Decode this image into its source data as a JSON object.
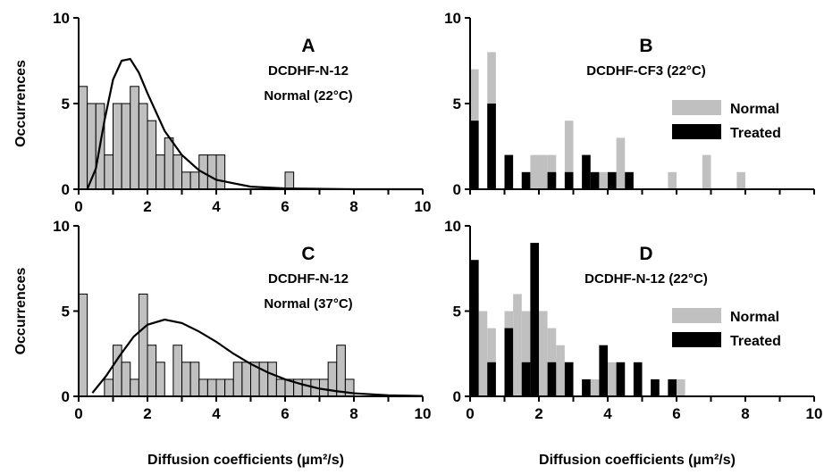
{
  "x_axis_label": "Diffusion coefficients (µm²/s)",
  "chart_data": [
    {
      "type": "histogram",
      "letter": "A",
      "subtitle_lines": [
        "DCDHF-N-12",
        "Normal (22°C)"
      ],
      "ylabel": "Occurrences",
      "xlim": [
        0,
        10
      ],
      "ylim": [
        0,
        10
      ],
      "xticks": [
        0,
        2,
        4,
        6,
        8,
        10
      ],
      "yticks": [
        0,
        5,
        10
      ],
      "bin_width": 0.25,
      "series": [
        {
          "color": "#c0c0c0",
          "bars": [
            [
              0,
              6
            ],
            [
              0.25,
              5
            ],
            [
              0.5,
              5
            ],
            [
              0.75,
              2
            ],
            [
              1.0,
              5
            ],
            [
              1.25,
              5
            ],
            [
              1.5,
              6
            ],
            [
              1.75,
              5
            ],
            [
              2.0,
              4
            ],
            [
              2.25,
              2
            ],
            [
              2.5,
              3
            ],
            [
              2.75,
              2
            ],
            [
              3.0,
              1
            ],
            [
              3.25,
              1
            ],
            [
              3.5,
              2
            ],
            [
              3.75,
              2
            ],
            [
              4.0,
              2
            ],
            [
              6.0,
              1
            ]
          ]
        }
      ],
      "fit_curve": {
        "x": [
          0.25,
          0.5,
          0.75,
          1.0,
          1.25,
          1.5,
          1.75,
          2.0,
          2.5,
          3.0,
          3.5,
          4.0,
          5.0,
          6.0,
          8.0,
          10.0
        ],
        "y": [
          0,
          1.2,
          4,
          6.4,
          7.5,
          7.6,
          6.8,
          5.6,
          3.4,
          2.0,
          1.1,
          0.55,
          0.15,
          0.05,
          0,
          0
        ]
      }
    },
    {
      "type": "histogram",
      "letter": "B",
      "subtitle_lines": [
        "DCDHF-CF3 (22°C)"
      ],
      "ylabel": "",
      "xlim": [
        0,
        10
      ],
      "ylim": [
        0,
        10
      ],
      "xticks": [],
      "yticks": [
        0,
        5,
        10
      ],
      "bin_width": 0.25,
      "series": [
        {
          "name": "Normal",
          "color": "#c0c0c0",
          "bars": [
            [
              0,
              7
            ],
            [
              0.5,
              8
            ],
            [
              1.75,
              2
            ],
            [
              2.0,
              2
            ],
            [
              2.25,
              2
            ],
            [
              2.75,
              4
            ],
            [
              3.25,
              1
            ],
            [
              3.75,
              1
            ],
            [
              4.25,
              3
            ],
            [
              5.75,
              1
            ],
            [
              6.75,
              2
            ],
            [
              7.75,
              1
            ]
          ]
        },
        {
          "name": "Treated",
          "color": "#000000",
          "bars": [
            [
              0,
              4
            ],
            [
              0.5,
              5
            ],
            [
              1.0,
              2
            ],
            [
              1.5,
              1
            ],
            [
              2.25,
              1
            ],
            [
              2.75,
              1
            ],
            [
              3.25,
              2
            ],
            [
              3.5,
              1
            ],
            [
              4.0,
              1
            ],
            [
              4.5,
              1
            ]
          ]
        }
      ],
      "legend": [
        "Normal",
        "Treated"
      ]
    },
    {
      "type": "histogram",
      "letter": "C",
      "subtitle_lines": [
        "DCDHF-N-12",
        "Normal (37°C)"
      ],
      "ylabel": "Occurrences",
      "xlim": [
        0,
        10
      ],
      "ylim": [
        0,
        10
      ],
      "xticks": [
        0,
        2,
        4,
        6,
        8,
        10
      ],
      "yticks": [
        0,
        5,
        10
      ],
      "bin_width": 0.25,
      "series": [
        {
          "color": "#c0c0c0",
          "bars": [
            [
              0,
              6
            ],
            [
              0.25,
              0
            ],
            [
              0.5,
              0
            ],
            [
              0.75,
              1
            ],
            [
              1.0,
              3
            ],
            [
              1.25,
              2
            ],
            [
              1.5,
              1
            ],
            [
              1.75,
              6
            ],
            [
              2.0,
              3
            ],
            [
              2.25,
              2
            ],
            [
              2.5,
              0
            ],
            [
              2.75,
              3
            ],
            [
              3.0,
              2
            ],
            [
              3.25,
              2
            ],
            [
              3.5,
              1
            ],
            [
              3.75,
              1
            ],
            [
              4.0,
              1
            ],
            [
              4.25,
              1
            ],
            [
              4.5,
              2
            ],
            [
              4.75,
              2
            ],
            [
              5.0,
              2
            ],
            [
              5.25,
              2
            ],
            [
              5.5,
              2
            ],
            [
              5.75,
              1
            ],
            [
              6.0,
              1
            ],
            [
              6.25,
              1
            ],
            [
              6.5,
              1
            ],
            [
              6.75,
              1
            ],
            [
              7.0,
              1
            ],
            [
              7.25,
              2
            ],
            [
              7.5,
              3
            ],
            [
              7.75,
              1
            ]
          ]
        }
      ],
      "fit_curve": {
        "x": [
          0.4,
          0.8,
          1.2,
          1.6,
          2.0,
          2.5,
          3.0,
          3.5,
          4.0,
          4.5,
          5.0,
          5.5,
          6.0,
          6.5,
          7.0,
          7.5,
          8.0,
          9.0,
          10.0
        ],
        "y": [
          0.2,
          1.2,
          2.4,
          3.5,
          4.2,
          4.5,
          4.3,
          3.8,
          3.2,
          2.5,
          1.9,
          1.4,
          1.0,
          0.7,
          0.45,
          0.3,
          0.18,
          0.06,
          0.02
        ]
      }
    },
    {
      "type": "histogram",
      "letter": "D",
      "subtitle_lines": [
        "DCDHF-N-12 (22°C)"
      ],
      "ylabel": "",
      "xlim": [
        0,
        10
      ],
      "ylim": [
        0,
        10
      ],
      "xticks": [
        0,
        2,
        4,
        6,
        8,
        10
      ],
      "yticks": [
        0,
        5,
        10
      ],
      "bin_width": 0.25,
      "series": [
        {
          "name": "Normal",
          "color": "#c0c0c0",
          "bars": [
            [
              0,
              6
            ],
            [
              0.25,
              5
            ],
            [
              0.5,
              4
            ],
            [
              1.0,
              5
            ],
            [
              1.25,
              6
            ],
            [
              1.5,
              5
            ],
            [
              2.0,
              5
            ],
            [
              2.25,
              4
            ],
            [
              2.5,
              3
            ],
            [
              2.75,
              2
            ],
            [
              3.25,
              1
            ],
            [
              3.5,
              1
            ],
            [
              4.0,
              2
            ],
            [
              5.25,
              1
            ],
            [
              6.0,
              1
            ]
          ]
        },
        {
          "name": "Treated",
          "color": "#000000",
          "bars": [
            [
              0,
              8
            ],
            [
              0.5,
              2
            ],
            [
              1.0,
              4
            ],
            [
              1.5,
              2
            ],
            [
              1.75,
              9
            ],
            [
              2.25,
              2
            ],
            [
              2.75,
              2
            ],
            [
              3.25,
              1
            ],
            [
              3.75,
              3
            ],
            [
              4.25,
              2
            ],
            [
              4.75,
              2
            ],
            [
              5.25,
              1
            ],
            [
              5.75,
              1
            ]
          ]
        }
      ],
      "legend": [
        "Normal",
        "Treated"
      ]
    }
  ]
}
